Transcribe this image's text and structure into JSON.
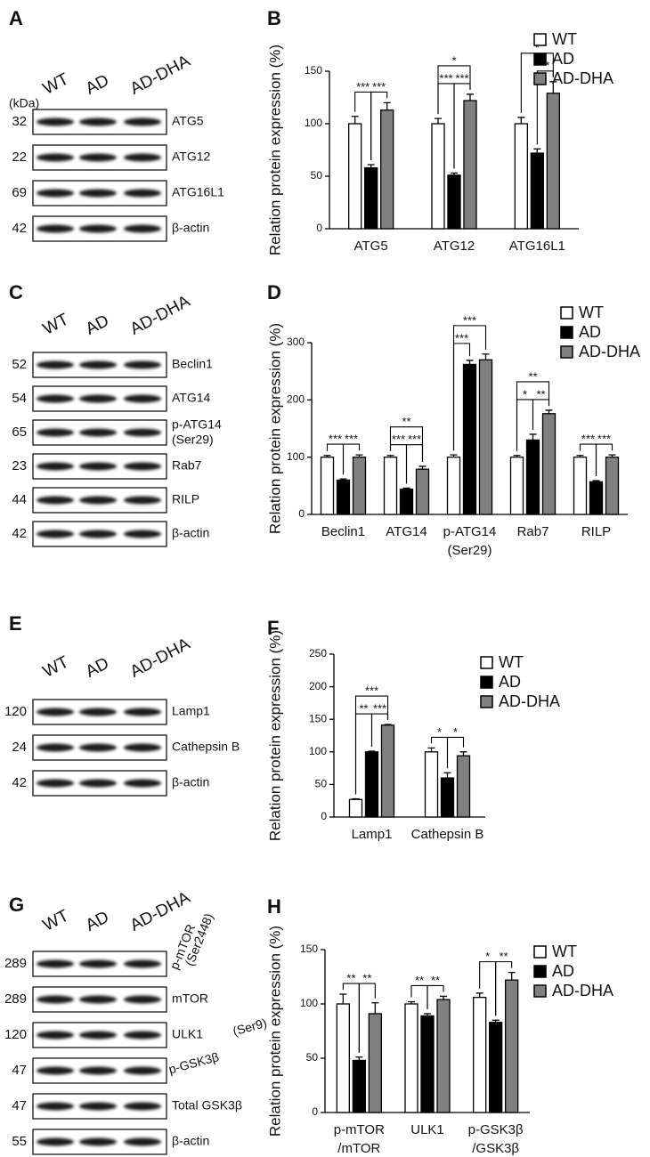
{
  "blots": [
    {
      "panel": "A",
      "lanes": [
        "WT",
        "AD",
        "AD-DHA"
      ],
      "unit": "(kDa)",
      "rows": [
        {
          "kda": 32,
          "label": "ATG5"
        },
        {
          "kda": 22,
          "label": "ATG12"
        },
        {
          "kda": 69,
          "label": "ATG16L1"
        },
        {
          "kda": 42,
          "label": "β-actin"
        }
      ]
    },
    {
      "panel": "C",
      "lanes": [
        "WT",
        "AD",
        "AD-DHA"
      ],
      "rows": [
        {
          "kda": 52,
          "label": "Beclin1"
        },
        {
          "kda": 54,
          "label": "ATG14"
        },
        {
          "kda": 65,
          "label": [
            "p-ATG14",
            "(Ser29)"
          ]
        },
        {
          "kda": 23,
          "label": "Rab7"
        },
        {
          "kda": 44,
          "label": "RILP"
        },
        {
          "kda": 42,
          "label": "β-actin"
        }
      ]
    },
    {
      "panel": "E",
      "lanes": [
        "WT",
        "AD",
        "AD-DHA"
      ],
      "rows": [
        {
          "kda": 120,
          "label": "Lamp1"
        },
        {
          "kda": 24,
          "label": "Cathepsin B"
        },
        {
          "kda": 42,
          "label": "β-actin"
        }
      ]
    },
    {
      "panel": "G",
      "lanes": [
        "WT",
        "AD",
        "AD-DHA"
      ],
      "rows": [
        {
          "kda": 289,
          "label": [
            "p-mTOR",
            "(Ser2448)"
          ]
        },
        {
          "kda": 289,
          "label": "mTOR"
        },
        {
          "kda": 120,
          "label": "ULK1"
        },
        {
          "kda": 47,
          "label": [
            "p-GSK3β",
            "(Ser9)"
          ]
        },
        {
          "kda": 47,
          "label": "Total GSK3β"
        },
        {
          "kda": 55,
          "label": "β-actin"
        }
      ]
    }
  ],
  "chart_data": [
    {
      "type": "bar",
      "panel": "B",
      "y_label": "Relation protein expression (%)",
      "categories": [
        "ATG5",
        "ATG12",
        "ATG16L1"
      ],
      "series": [
        {
          "name": "WT",
          "color": "#ffffff",
          "values": [
            100,
            100,
            100
          ],
          "errors": [
            7,
            5,
            6
          ]
        },
        {
          "name": "AD",
          "color": "#000000",
          "values": [
            58,
            51,
            72
          ],
          "errors": [
            3,
            2,
            4
          ]
        },
        {
          "name": "AD-DHA",
          "color": "#808080",
          "values": [
            113,
            122,
            129
          ],
          "errors": [
            7,
            6,
            11
          ]
        }
      ],
      "ylim": [
        0,
        150
      ],
      "yticks": [
        0,
        50,
        100,
        150
      ],
      "legend": "right",
      "significance": [
        {
          "category": 0,
          "between": [
            0,
            1
          ],
          "label": "***"
        },
        {
          "category": 0,
          "between": [
            1,
            2
          ],
          "label": "***"
        },
        {
          "category": 1,
          "between": [
            0,
            1
          ],
          "label": "***"
        },
        {
          "category": 1,
          "between": [
            1,
            2
          ],
          "label": "***"
        },
        {
          "category": 1,
          "between": [
            0,
            2
          ],
          "label": "*"
        },
        {
          "category": 2,
          "between": [
            0,
            2
          ],
          "label": "*"
        },
        {
          "category": 2,
          "between": [
            1,
            2
          ],
          "label": "**"
        }
      ]
    },
    {
      "type": "bar",
      "panel": "D",
      "y_label": "Relation protein expression (%)",
      "categories": [
        "Beclin1",
        "ATG14",
        [
          "p-ATG14",
          "(Ser29)"
        ],
        "Rab7",
        "RILP"
      ],
      "series": [
        {
          "name": "WT",
          "color": "#ffffff",
          "values": [
            100,
            100,
            100,
            100,
            100
          ],
          "errors": [
            3,
            3,
            4,
            3,
            3
          ]
        },
        {
          "name": "AD",
          "color": "#000000",
          "values": [
            60,
            44,
            262,
            130,
            57
          ],
          "errors": [
            2,
            2,
            7,
            10,
            2
          ]
        },
        {
          "name": "AD-DHA",
          "color": "#808080",
          "values": [
            100,
            79,
            270,
            176,
            100
          ],
          "errors": [
            4,
            5,
            10,
            6,
            4
          ]
        }
      ],
      "ylim": [
        0,
        300
      ],
      "yticks": [
        0,
        100,
        200,
        300
      ],
      "legend": "right",
      "significance": [
        {
          "category": 0,
          "between": [
            0,
            1
          ],
          "label": "***"
        },
        {
          "category": 0,
          "between": [
            1,
            2
          ],
          "label": "***"
        },
        {
          "category": 1,
          "between": [
            0,
            1
          ],
          "label": "***"
        },
        {
          "category": 1,
          "between": [
            1,
            2
          ],
          "label": "***"
        },
        {
          "category": 1,
          "between": [
            0,
            2
          ],
          "label": "**"
        },
        {
          "category": 2,
          "between": [
            0,
            1
          ],
          "label": "***"
        },
        {
          "category": 2,
          "between": [
            0,
            2
          ],
          "label": "***"
        },
        {
          "category": 3,
          "between": [
            0,
            1
          ],
          "label": "*"
        },
        {
          "category": 3,
          "between": [
            1,
            2
          ],
          "label": "**"
        },
        {
          "category": 3,
          "between": [
            0,
            2
          ],
          "label": "**"
        },
        {
          "category": 4,
          "between": [
            0,
            1
          ],
          "label": "***"
        },
        {
          "category": 4,
          "between": [
            1,
            2
          ],
          "label": "***"
        }
      ]
    },
    {
      "type": "bar",
      "panel": "F",
      "y_label": "Relation protein expression (%)",
      "categories": [
        "Lamp1",
        "Cathepsin B"
      ],
      "series": [
        {
          "name": "WT",
          "color": "#ffffff",
          "values": [
            27,
            100
          ],
          "errors": [
            1,
            6
          ]
        },
        {
          "name": "AD",
          "color": "#000000",
          "values": [
            100,
            60
          ],
          "errors": [
            1,
            8
          ]
        },
        {
          "name": "AD-DHA",
          "color": "#808080",
          "values": [
            141,
            94
          ],
          "errors": [
            1,
            6
          ]
        }
      ],
      "ylim": [
        0,
        250
      ],
      "yticks": [
        0,
        50,
        100,
        150,
        200,
        250
      ],
      "legend": "right",
      "significance": [
        {
          "category": 0,
          "between": [
            0,
            1
          ],
          "label": "**"
        },
        {
          "category": 0,
          "between": [
            1,
            2
          ],
          "label": "***"
        },
        {
          "category": 0,
          "between": [
            0,
            2
          ],
          "label": "***"
        },
        {
          "category": 1,
          "between": [
            0,
            1
          ],
          "label": "*"
        },
        {
          "category": 1,
          "between": [
            1,
            2
          ],
          "label": "*"
        }
      ]
    },
    {
      "type": "bar",
      "panel": "H",
      "y_label": "Relation protein expression (%)",
      "categories": [
        [
          "p-mTOR",
          "/mTOR"
        ],
        "ULK1",
        [
          "p-GSK3β",
          "/GSK3β"
        ]
      ],
      "series": [
        {
          "name": "WT",
          "color": "#ffffff",
          "values": [
            100,
            100,
            106
          ],
          "errors": [
            9,
            2,
            4
          ]
        },
        {
          "name": "AD",
          "color": "#000000",
          "values": [
            48,
            89,
            83
          ],
          "errors": [
            3,
            2,
            2
          ]
        },
        {
          "name": "AD-DHA",
          "color": "#808080",
          "values": [
            91,
            104,
            122
          ],
          "errors": [
            10,
            3,
            7
          ]
        }
      ],
      "ylim": [
        0,
        150
      ],
      "yticks": [
        0,
        50,
        100,
        150
      ],
      "legend": "right",
      "significance": [
        {
          "category": 0,
          "between": [
            0,
            1
          ],
          "label": "**"
        },
        {
          "category": 0,
          "between": [
            1,
            2
          ],
          "label": "**"
        },
        {
          "category": 1,
          "between": [
            0,
            1
          ],
          "label": "**"
        },
        {
          "category": 1,
          "between": [
            1,
            2
          ],
          "label": "**"
        },
        {
          "category": 2,
          "between": [
            0,
            1
          ],
          "label": "*"
        },
        {
          "category": 2,
          "between": [
            1,
            2
          ],
          "label": "**"
        }
      ]
    }
  ]
}
